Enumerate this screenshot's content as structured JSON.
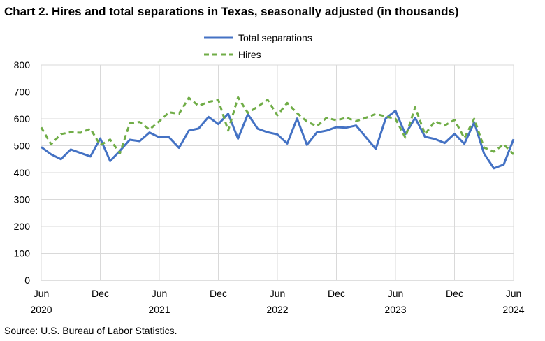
{
  "title": "Chart 2. Hires and total separations in Texas, seasonally adjusted (in thousands)",
  "source": "Source: U.S. Bureau of Labor Statistics.",
  "chart_data": {
    "type": "line",
    "title": "Chart 2. Hires and total separations in Texas, seasonally adjusted (in thousands)",
    "x_start": "2020-06",
    "x_end": "2024-06",
    "x_ticks": [
      {
        "month": "Jun",
        "year": "2020"
      },
      {
        "month": "Dec",
        "year": ""
      },
      {
        "month": "Jun",
        "year": "2021"
      },
      {
        "month": "Dec",
        "year": ""
      },
      {
        "month": "Jun",
        "year": "2022"
      },
      {
        "month": "Dec",
        "year": ""
      },
      {
        "month": "Jun",
        "year": "2023"
      },
      {
        "month": "Dec",
        "year": ""
      },
      {
        "month": "Jun",
        "year": "2024"
      }
    ],
    "ylim": [
      0,
      800
    ],
    "y_ticks": [
      0,
      100,
      200,
      300,
      400,
      500,
      600,
      700,
      800
    ],
    "grid": true,
    "legend_position": "top-center",
    "series": [
      {
        "name": "Total separations",
        "color": "#4472C4",
        "style": "solid",
        "values": [
          495,
          468,
          450,
          486,
          473,
          460,
          527,
          443,
          481,
          522,
          517,
          549,
          531,
          531,
          492,
          556,
          564,
          607,
          580,
          619,
          526,
          617,
          563,
          550,
          542,
          508,
          601,
          503,
          549,
          556,
          569,
          567,
          575,
          531,
          488,
          601,
          630,
          543,
          603,
          533,
          525,
          510,
          544,
          507,
          587,
          471,
          416,
          430,
          524
        ]
      },
      {
        "name": "Hires",
        "color": "#70AD47",
        "style": "dashed",
        "values": [
          568,
          505,
          543,
          550,
          548,
          563,
          502,
          523,
          472,
          583,
          588,
          560,
          591,
          624,
          619,
          678,
          648,
          663,
          670,
          556,
          680,
          622,
          645,
          671,
          613,
          659,
          621,
          590,
          572,
          604,
          594,
          604,
          591,
          604,
          618,
          609,
          600,
          530,
          643,
          542,
          591,
          575,
          596,
          528,
          600,
          493,
          478,
          505,
          468
        ]
      }
    ]
  }
}
